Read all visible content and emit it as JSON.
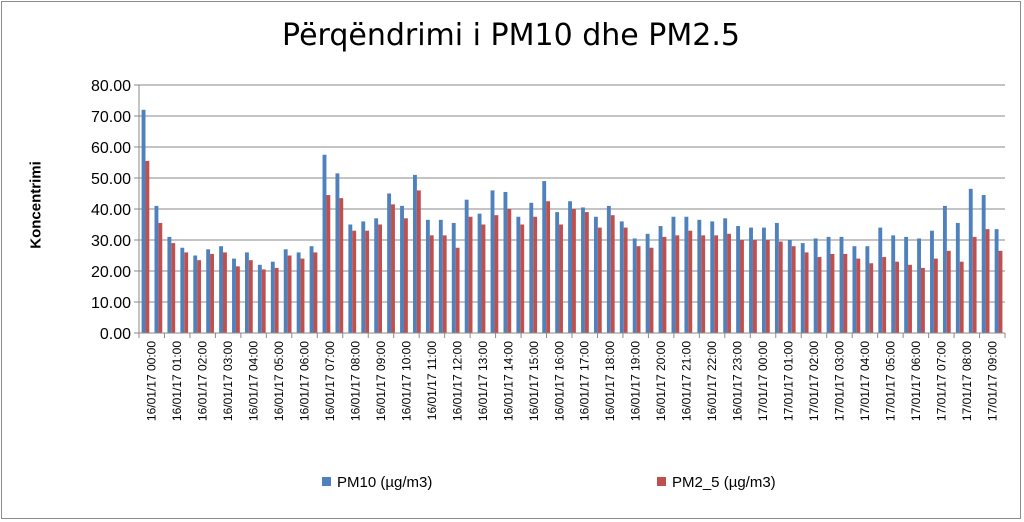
{
  "chart_data": {
    "type": "bar",
    "title": "Përqëndrimi i PM10 dhe PM2.5",
    "ylabel": "Koncentrimi",
    "xlabel": "",
    "ylim": [
      0,
      80
    ],
    "yticks": [
      "0.00",
      "10.00",
      "20.00",
      "30.00",
      "40.00",
      "50.00",
      "60.00",
      "70.00",
      "80.00"
    ],
    "grid": true,
    "legend_position": "bottom",
    "x_tick_labels": [
      "16/01/17 00:00",
      "16/01/17 01:00",
      "16/01/17 02:00",
      "16/01/17 03:00",
      "16/01/17 04:00",
      "16/01/17 05:00",
      "16/01/17 06:00",
      "16/01/17 07:00",
      "16/01/17 08:00",
      "16/01/17 09:00",
      "16/01/17 10:00",
      "16/01/17 11:00",
      "16/01/17 12:00",
      "16/01/17 13:00",
      "16/01/17 14:00",
      "16/01/17 15:00",
      "16/01/17 16:00",
      "16/01/17 17:00",
      "16/01/17 18:00",
      "16/01/17 19:00",
      "16/01/17 20:00",
      "16/01/17 21:00",
      "16/01/17 22:00",
      "16/01/17 23:00",
      "17/01/17 00:00",
      "17/01/17 01:00",
      "17/01/17 02:00",
      "17/01/17 03:00",
      "17/01/17 04:00",
      "17/01/17 05:00",
      "17/01/17 06:00",
      "17/01/17 07:00",
      "17/01/17 08:00",
      "17/01/17 09:00"
    ],
    "series": [
      {
        "name": "PM10 (µg/m3)",
        "color": "#4f81bd",
        "values": [
          72.0,
          41.0,
          31.0,
          27.5,
          25.0,
          27.0,
          28.0,
          24.0,
          26.0,
          22.0,
          23.0,
          27.0,
          26.0,
          28.0,
          57.5,
          51.5,
          35.0,
          36.0,
          37.0,
          45.0,
          41.0,
          51.0,
          36.5,
          36.5,
          35.5,
          43.0,
          38.5,
          46.0,
          45.5,
          37.5,
          42.0,
          49.0,
          39.0,
          42.5,
          40.5,
          37.5,
          41.0,
          36.0,
          30.5,
          32.0,
          34.5,
          37.5,
          37.5,
          36.5,
          36.0,
          37.0,
          34.5,
          34.0,
          34.0,
          35.5,
          30.0,
          29.0,
          30.5,
          31.0,
          31.0,
          28.0,
          28.0,
          34.0,
          31.5,
          31.0,
          30.5,
          33.0,
          41.0,
          35.5,
          46.5,
          44.5,
          33.5
        ]
      },
      {
        "name": "PM2_5 (µg/m3)",
        "color": "#c0504d",
        "values": [
          55.5,
          35.5,
          29.0,
          26.0,
          23.5,
          25.5,
          26.0,
          21.5,
          23.5,
          20.5,
          21.0,
          25.0,
          24.0,
          26.0,
          44.5,
          43.5,
          33.0,
          33.0,
          35.0,
          41.5,
          37.0,
          46.0,
          31.5,
          31.5,
          27.5,
          37.5,
          35.0,
          38.0,
          40.0,
          35.0,
          37.5,
          42.5,
          35.0,
          40.0,
          39.0,
          34.0,
          38.0,
          34.0,
          28.0,
          27.5,
          31.0,
          31.5,
          33.0,
          31.5,
          31.5,
          32.0,
          30.0,
          30.0,
          30.0,
          29.5,
          28.0,
          26.0,
          24.5,
          25.5,
          25.5,
          24.0,
          22.5,
          24.5,
          23.0,
          22.0,
          21.0,
          24.0,
          26.5,
          23.0,
          31.0,
          33.5,
          26.5
        ]
      }
    ]
  }
}
